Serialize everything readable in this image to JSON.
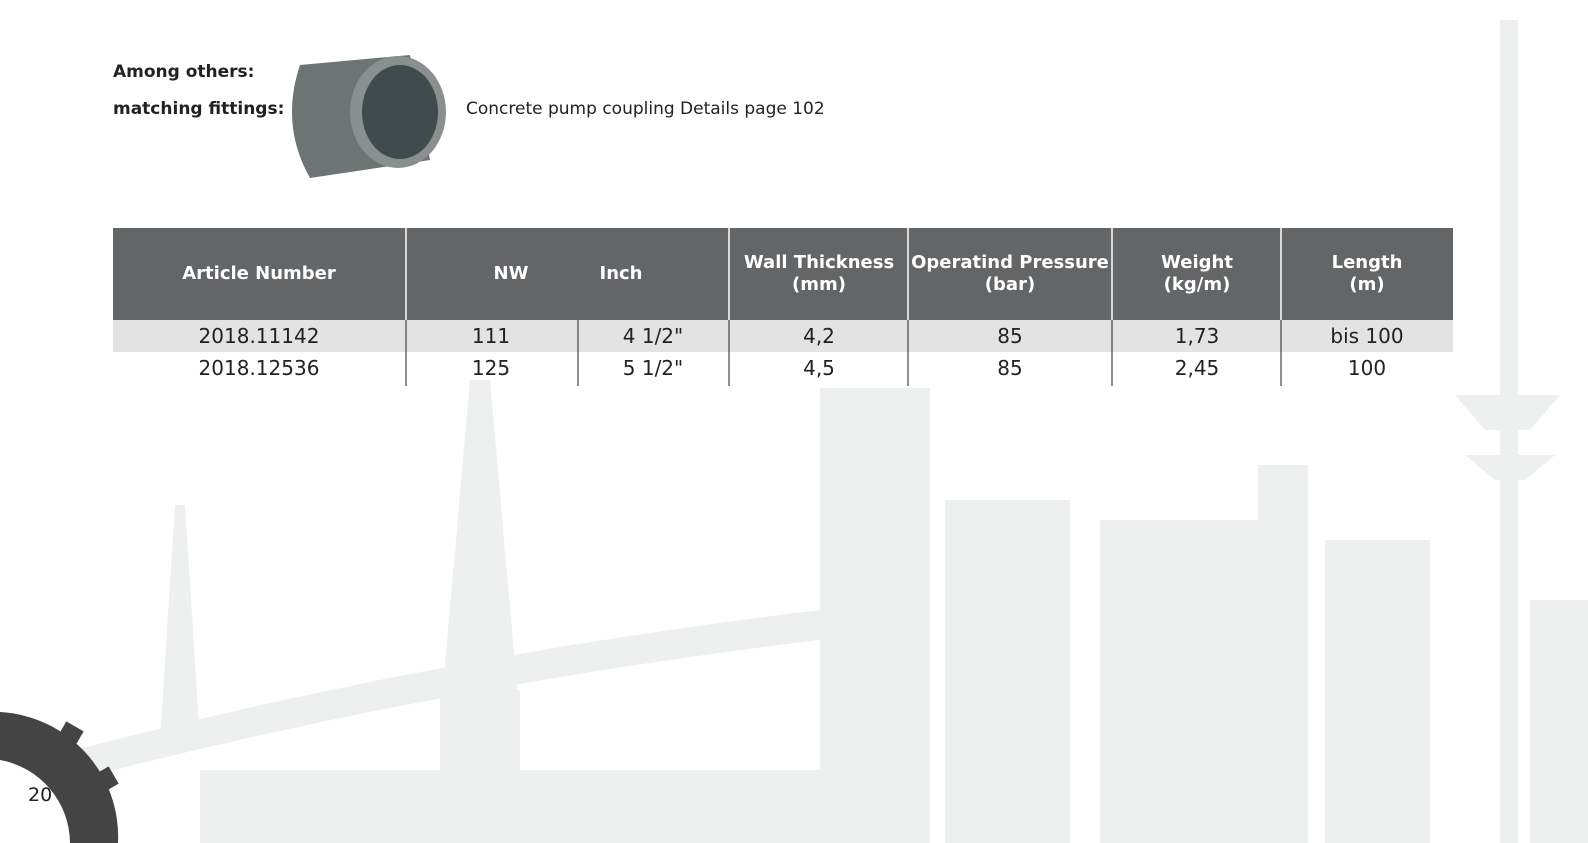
{
  "intro": {
    "label_lines": [
      "Among others:",
      "matching fittings:"
    ],
    "caption": "Concrete pump coupling Details page 102"
  },
  "table": {
    "header": [
      [
        "Article Number"
      ],
      [
        "NW"
      ],
      [
        "Inch"
      ],
      [
        "Wall Thickness",
        "(mm)"
      ],
      [
        "Operatind Pressure",
        "(bar)"
      ],
      [
        "Weight",
        "(kg/m)"
      ],
      [
        "Length",
        "(m)"
      ]
    ],
    "rows": [
      [
        "2018.11142",
        "111",
        "4 1/2\"",
        "4,2",
        "85",
        "1,73",
        "bis 100"
      ],
      [
        "2018.12536",
        "125",
        "5 1/2\"",
        "4,5",
        "85",
        "2,45",
        "100"
      ]
    ]
  },
  "page_number": "20"
}
